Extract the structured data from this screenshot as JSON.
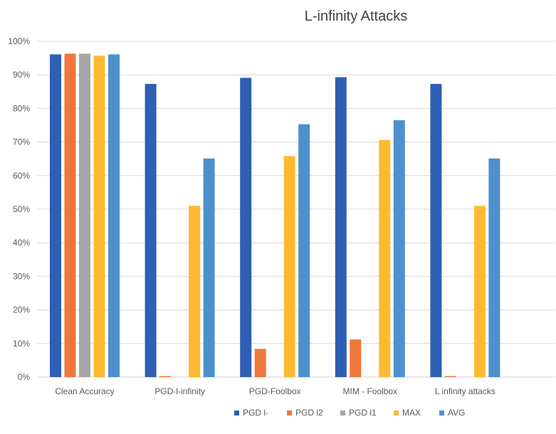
{
  "chart_data": {
    "type": "bar",
    "title": "L-infinity Attacks",
    "xlabel": "",
    "ylabel": "",
    "ylim": [
      0,
      100
    ],
    "ytick_labels": [
      "0%",
      "10%",
      "20%",
      "30%",
      "40%",
      "50%",
      "60%",
      "70%",
      "80%",
      "90%",
      "100%"
    ],
    "grid": "horizontal",
    "legend_position": "bottom",
    "categories": [
      "Clean Accuracy",
      "PGD-l-infinity",
      "PGD-Foolbox",
      "MIM - Foolbox",
      "L infinity attacks"
    ],
    "series": [
      {
        "name": "PGD l-",
        "color": "#2E5FB5",
        "values": [
          96.1,
          87.3,
          89.1,
          89.3,
          87.3
        ]
      },
      {
        "name": "PGD l2",
        "color": "#F0773A",
        "values": [
          96.3,
          0.3,
          8.4,
          11.2,
          0.3
        ]
      },
      {
        "name": "PGD l1",
        "color": "#A5A5A5",
        "values": [
          96.3,
          0,
          0,
          0,
          0
        ]
      },
      {
        "name": "MAX",
        "color": "#FDBA31",
        "values": [
          95.7,
          51.0,
          65.8,
          70.6,
          51.0
        ]
      },
      {
        "name": "AVG",
        "color": "#4C91CE",
        "values": [
          96.1,
          65.1,
          75.3,
          76.5,
          65.1
        ]
      }
    ]
  }
}
